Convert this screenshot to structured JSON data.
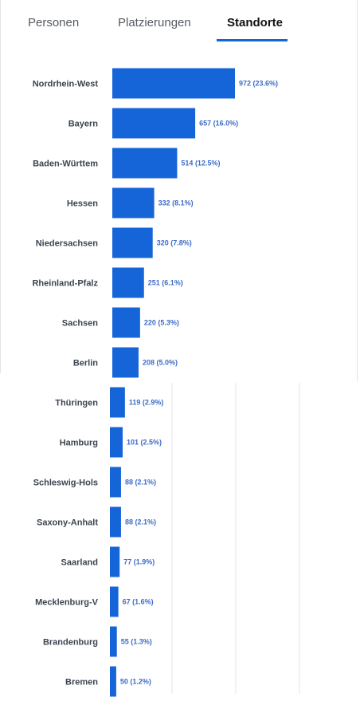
{
  "tabs": [
    {
      "label": "Personen",
      "active": false
    },
    {
      "label": "Platzierungen",
      "active": false
    },
    {
      "label": "Standorte",
      "active": true
    }
  ],
  "colors": {
    "bar": "#1565d8",
    "accent": "#1565d8",
    "grid": "#e6e6e6"
  },
  "chart_data": {
    "type": "bar",
    "orientation": "horizontal",
    "grid": true,
    "categories": [
      "Nordrhein-West",
      "Bayern",
      "Baden-Württem",
      "Hessen",
      "Niedersachsen",
      "Rheinland-Pfalz",
      "Sachsen",
      "Berlin",
      "Thüringen",
      "Hamburg",
      "Schleswig-Hols",
      "Saxony-Anhalt",
      "Saarland",
      "Mecklenburg-V",
      "Brandenburg",
      "Bremen"
    ],
    "values": [
      972,
      657,
      514,
      332,
      320,
      251,
      220,
      208,
      119,
      101,
      88,
      88,
      77,
      67,
      55,
      50
    ],
    "labels": [
      "972 (23.6%)",
      "657 (16.0%)",
      "514 (12.5%)",
      "332 (8.1%)",
      "320 (7.8%)",
      "251 (6.1%)",
      "220 (5.3%)",
      "208 (5.0%)",
      "119 (2.9%)",
      "101 (2.5%)",
      "88 (2.1%)",
      "88 (2.1%)",
      "77 (1.9%)",
      "67 (1.6%)",
      "55 (1.3%)",
      "50 (1.2%)"
    ],
    "xlim": [
      0,
      972
    ]
  }
}
